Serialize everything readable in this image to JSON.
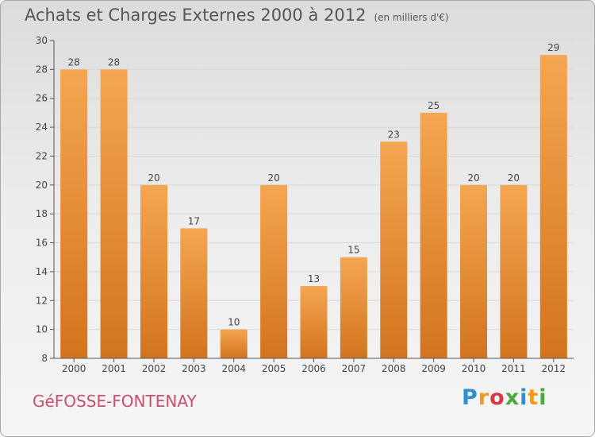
{
  "title": "Achats et Charges Externes 2000 à 2012",
  "subtitle": "(en milliers d'€)",
  "commune": "GéFOSSE-FONTENAY",
  "logo": {
    "letters": [
      "P",
      "r",
      "o",
      "x",
      "i",
      "t",
      "i"
    ],
    "colors": [
      "#2e8fd0",
      "#f29a1e",
      "#d63a48",
      "#4aa83c",
      "#2e8fd0",
      "#f29a1e",
      "#4aa83c"
    ]
  },
  "colors": {
    "bar_top": "#f5a650",
    "bar_bottom": "#d2741e",
    "axis": "#555555",
    "grid": "#d8d8d8"
  },
  "chart_data": {
    "type": "bar",
    "categories": [
      "2000",
      "2001",
      "2002",
      "2003",
      "2004",
      "2005",
      "2006",
      "2007",
      "2008",
      "2009",
      "2010",
      "2011",
      "2012"
    ],
    "values": [
      28,
      28,
      20,
      17,
      10,
      20,
      13,
      15,
      23,
      25,
      20,
      20,
      29
    ],
    "ylim": [
      8,
      30
    ],
    "yticks": [
      8,
      10,
      12,
      14,
      16,
      18,
      20,
      22,
      24,
      26,
      28,
      30
    ],
    "grid": "horizontal"
  }
}
